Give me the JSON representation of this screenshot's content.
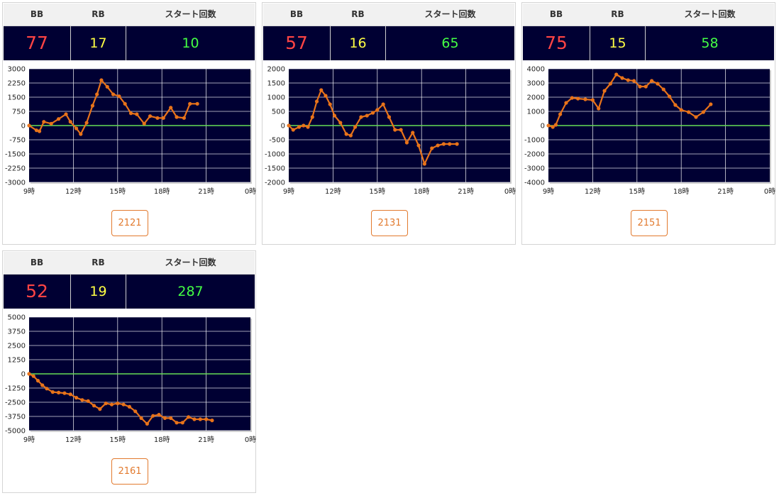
{
  "headers": {
    "bb": "BB",
    "rb": "RB",
    "start": "スタート回数"
  },
  "colors": {
    "bb": "#ff4444",
    "rb": "#ffff44",
    "start": "#44ff44",
    "plot_bg": "#000033",
    "line": "#e8731a",
    "zero_line": "#66dd55",
    "grid": "#ffffff"
  },
  "charts": [
    {
      "bb": "77",
      "rb": "17",
      "start": "10",
      "machine": "2121"
    },
    {
      "bb": "57",
      "rb": "16",
      "start": "65",
      "machine": "2131"
    },
    {
      "bb": "75",
      "rb": "15",
      "start": "58",
      "machine": "2151"
    },
    {
      "bb": "52",
      "rb": "19",
      "start": "287",
      "machine": "2161"
    }
  ],
  "chart_data": [
    {
      "type": "line",
      "x_ticks": [
        "9時",
        "12時",
        "15時",
        "18時",
        "21時",
        "0時"
      ],
      "y_ticks": [
        3000,
        2250,
        1500,
        750,
        0,
        -750,
        -1500,
        -2250,
        -3000
      ],
      "ylim": [
        -3000,
        3000
      ],
      "xlim": [
        9,
        24
      ],
      "x": [
        9.0,
        9.5,
        9.7,
        10.0,
        10.5,
        11.0,
        11.5,
        11.8,
        12.2,
        12.5,
        12.9,
        13.3,
        13.6,
        13.9,
        14.3,
        14.7,
        15.1,
        15.5,
        15.9,
        16.3,
        16.8,
        17.2,
        17.7,
        18.1,
        18.6,
        19.0,
        19.5,
        19.9,
        20.4
      ],
      "y": [
        0,
        -250,
        -300,
        200,
        100,
        350,
        600,
        200,
        -150,
        -450,
        150,
        1050,
        1650,
        2400,
        2050,
        1650,
        1550,
        1150,
        650,
        600,
        100,
        500,
        400,
        400,
        950,
        450,
        400,
        1150,
        1150
      ],
      "grid": true
    },
    {
      "type": "line",
      "x_ticks": [
        "9時",
        "12時",
        "15時",
        "18時",
        "21時",
        "0時"
      ],
      "y_ticks": [
        2000,
        1500,
        1000,
        500,
        0,
        -500,
        -1000,
        -1500,
        -2000
      ],
      "ylim": [
        -2000,
        2000
      ],
      "xlim": [
        9,
        24
      ],
      "x": [
        9.0,
        9.3,
        9.7,
        10.0,
        10.3,
        10.6,
        10.9,
        11.2,
        11.5,
        11.8,
        12.1,
        12.5,
        12.9,
        13.2,
        13.5,
        13.9,
        14.3,
        14.7,
        15.0,
        15.4,
        15.8,
        16.2,
        16.6,
        17.0,
        17.4,
        17.8,
        18.2,
        18.7,
        19.1,
        19.5,
        19.9,
        20.4
      ],
      "y": [
        0,
        -150,
        -50,
        0,
        -50,
        300,
        850,
        1250,
        1050,
        750,
        350,
        100,
        -300,
        -350,
        -50,
        300,
        350,
        450,
        550,
        750,
        300,
        -150,
        -150,
        -600,
        -250,
        -700,
        -1350,
        -800,
        -700,
        -650,
        -650,
        -650
      ],
      "grid": true
    },
    {
      "type": "line",
      "x_ticks": [
        "9時",
        "12時",
        "15時",
        "18時",
        "21時",
        "0時"
      ],
      "y_ticks": [
        4000,
        3000,
        2000,
        1000,
        0,
        -1000,
        -2000,
        -3000,
        -4000
      ],
      "ylim": [
        -4000,
        4000
      ],
      "xlim": [
        9,
        24
      ],
      "x": [
        9.0,
        9.3,
        9.5,
        9.8,
        10.2,
        10.6,
        11.0,
        11.5,
        12.0,
        12.4,
        12.8,
        13.2,
        13.6,
        14.0,
        14.4,
        14.8,
        15.2,
        15.6,
        16.0,
        16.4,
        16.8,
        17.2,
        17.6,
        18.0,
        18.5,
        19.0,
        19.5,
        20.0
      ],
      "y": [
        0,
        -100,
        50,
        800,
        1600,
        1950,
        1900,
        1850,
        1800,
        1200,
        2450,
        2950,
        3600,
        3350,
        3200,
        3150,
        2750,
        2750,
        3150,
        2950,
        2550,
        2050,
        1450,
        1100,
        950,
        600,
        950,
        1500
      ],
      "grid": true
    },
    {
      "type": "line",
      "x_ticks": [
        "9時",
        "12時",
        "15時",
        "18時",
        "21時",
        "0時"
      ],
      "y_ticks": [
        5000,
        3750,
        2500,
        1250,
        0,
        -1250,
        -2500,
        -3750,
        -5000
      ],
      "ylim": [
        -5000,
        5000
      ],
      "xlim": [
        9,
        24
      ],
      "x": [
        9.0,
        9.3,
        9.6,
        9.9,
        10.2,
        10.6,
        11.0,
        11.4,
        11.8,
        12.2,
        12.6,
        13.0,
        13.4,
        13.8,
        14.2,
        14.6,
        15.0,
        15.4,
        15.8,
        16.2,
        16.6,
        17.0,
        17.4,
        17.8,
        18.2,
        18.6,
        19.0,
        19.4,
        19.8,
        20.2,
        20.6,
        21.0,
        21.4
      ],
      "y": [
        0,
        -200,
        -600,
        -1000,
        -1300,
        -1600,
        -1650,
        -1700,
        -1800,
        -2100,
        -2300,
        -2400,
        -2800,
        -3100,
        -2600,
        -2700,
        -2600,
        -2700,
        -2900,
        -3300,
        -3900,
        -4400,
        -3700,
        -3600,
        -3900,
        -3900,
        -4300,
        -4300,
        -3800,
        -4000,
        -4000,
        -4000,
        -4100
      ],
      "grid": true
    }
  ]
}
